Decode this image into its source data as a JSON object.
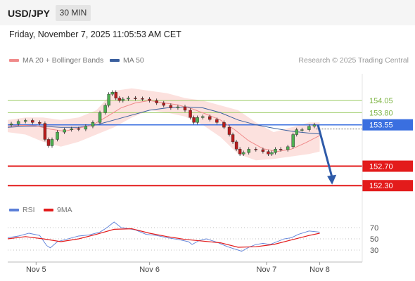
{
  "header": {
    "symbol": "USD/JPY",
    "timeframe": "30 MIN"
  },
  "datetime": "Friday, November 7, 2025 11:05:53 AM CET",
  "legend": {
    "ma20": {
      "label": "MA 20 + Bollinger Bands",
      "color": "#f08a8a"
    },
    "ma50": {
      "label": "MA 50",
      "color": "#3a5f9e"
    }
  },
  "credit": "Research © 2025 Trading Central",
  "rsi_legend": {
    "rsi": {
      "label": "RSI",
      "color": "#5b7fd8"
    },
    "ma9": {
      "label": "9MA",
      "color": "#e31b1b"
    }
  },
  "chart_data": [
    {
      "type": "line",
      "ylim": [
        152.0,
        154.6
      ],
      "xlim": [
        0,
        1
      ],
      "x_ticks": [
        {
          "label": "Nov 5",
          "x": 0.08
        },
        {
          "label": "Nov 6",
          "x": 0.4
        },
        {
          "label": "Nov 7",
          "x": 0.73
        },
        {
          "label": "Nov 8",
          "x": 0.88
        }
      ],
      "price": [
        [
          0.0,
          153.55
        ],
        [
          0.02,
          153.57
        ],
        [
          0.04,
          153.62
        ],
        [
          0.06,
          153.64
        ],
        [
          0.08,
          153.6
        ],
        [
          0.1,
          153.58
        ],
        [
          0.11,
          153.25
        ],
        [
          0.12,
          153.12
        ],
        [
          0.13,
          153.25
        ],
        [
          0.15,
          153.4
        ],
        [
          0.17,
          153.45
        ],
        [
          0.19,
          153.47
        ],
        [
          0.21,
          153.46
        ],
        [
          0.23,
          153.52
        ],
        [
          0.25,
          153.6
        ],
        [
          0.27,
          153.8
        ],
        [
          0.28,
          153.95
        ],
        [
          0.29,
          154.18
        ],
        [
          0.3,
          154.22
        ],
        [
          0.31,
          154.1
        ],
        [
          0.32,
          154.05
        ],
        [
          0.33,
          154.08
        ],
        [
          0.35,
          154.1
        ],
        [
          0.37,
          154.09
        ],
        [
          0.39,
          154.08
        ],
        [
          0.41,
          154.05
        ],
        [
          0.43,
          154.0
        ],
        [
          0.45,
          153.95
        ],
        [
          0.47,
          153.9
        ],
        [
          0.49,
          153.92
        ],
        [
          0.51,
          153.85
        ],
        [
          0.52,
          153.7
        ],
        [
          0.53,
          153.6
        ],
        [
          0.54,
          153.7
        ],
        [
          0.56,
          153.72
        ],
        [
          0.58,
          153.66
        ],
        [
          0.6,
          153.6
        ],
        [
          0.62,
          153.5
        ],
        [
          0.63,
          153.35
        ],
        [
          0.64,
          153.2
        ],
        [
          0.65,
          153.05
        ],
        [
          0.66,
          152.95
        ],
        [
          0.67,
          152.98
        ],
        [
          0.69,
          153.05
        ],
        [
          0.71,
          153.04
        ],
        [
          0.73,
          153.0
        ],
        [
          0.74,
          152.95
        ],
        [
          0.75,
          152.98
        ],
        [
          0.76,
          153.05
        ],
        [
          0.78,
          153.04
        ],
        [
          0.8,
          153.1
        ],
        [
          0.81,
          153.35
        ],
        [
          0.82,
          153.45
        ],
        [
          0.84,
          153.45
        ],
        [
          0.86,
          153.52
        ],
        [
          0.87,
          153.55
        ]
      ],
      "ma20": [
        [
          0.0,
          153.52
        ],
        [
          0.04,
          153.54
        ],
        [
          0.08,
          153.53
        ],
        [
          0.12,
          153.46
        ],
        [
          0.16,
          153.42
        ],
        [
          0.2,
          153.48
        ],
        [
          0.24,
          153.55
        ],
        [
          0.28,
          153.72
        ],
        [
          0.32,
          153.9
        ],
        [
          0.36,
          154.0
        ],
        [
          0.4,
          154.05
        ],
        [
          0.44,
          154.0
        ],
        [
          0.48,
          153.96
        ],
        [
          0.52,
          153.88
        ],
        [
          0.56,
          153.77
        ],
        [
          0.6,
          153.65
        ],
        [
          0.64,
          153.45
        ],
        [
          0.68,
          153.22
        ],
        [
          0.72,
          153.06
        ],
        [
          0.76,
          153.0
        ],
        [
          0.8,
          153.05
        ],
        [
          0.84,
          153.18
        ],
        [
          0.88,
          153.33
        ]
      ],
      "ma50": [
        [
          0.0,
          153.5
        ],
        [
          0.05,
          153.52
        ],
        [
          0.1,
          153.52
        ],
        [
          0.15,
          153.5
        ],
        [
          0.2,
          153.5
        ],
        [
          0.25,
          153.55
        ],
        [
          0.3,
          153.65
        ],
        [
          0.35,
          153.75
        ],
        [
          0.4,
          153.85
        ],
        [
          0.45,
          153.9
        ],
        [
          0.5,
          153.92
        ],
        [
          0.55,
          153.9
        ],
        [
          0.6,
          153.8
        ],
        [
          0.65,
          153.65
        ],
        [
          0.7,
          153.55
        ],
        [
          0.75,
          153.48
        ],
        [
          0.8,
          153.42
        ],
        [
          0.85,
          153.38
        ],
        [
          0.88,
          153.36
        ]
      ],
      "bollinger_upper": [
        [
          0.0,
          153.65
        ],
        [
          0.05,
          153.7
        ],
        [
          0.1,
          153.7
        ],
        [
          0.15,
          153.65
        ],
        [
          0.2,
          153.7
        ],
        [
          0.25,
          153.85
        ],
        [
          0.3,
          154.25
        ],
        [
          0.35,
          154.3
        ],
        [
          0.4,
          154.25
        ],
        [
          0.45,
          154.2
        ],
        [
          0.5,
          154.1
        ],
        [
          0.55,
          154.05
        ],
        [
          0.6,
          153.95
        ],
        [
          0.65,
          153.85
        ],
        [
          0.7,
          153.6
        ],
        [
          0.75,
          153.4
        ],
        [
          0.8,
          153.5
        ],
        [
          0.85,
          153.6
        ],
        [
          0.88,
          153.6
        ]
      ],
      "bollinger_lower": [
        [
          0.0,
          153.4
        ],
        [
          0.05,
          153.35
        ],
        [
          0.1,
          153.2
        ],
        [
          0.15,
          153.1
        ],
        [
          0.2,
          153.2
        ],
        [
          0.25,
          153.35
        ],
        [
          0.3,
          153.5
        ],
        [
          0.35,
          153.7
        ],
        [
          0.4,
          153.85
        ],
        [
          0.45,
          153.8
        ],
        [
          0.5,
          153.72
        ],
        [
          0.55,
          153.55
        ],
        [
          0.6,
          153.3
        ],
        [
          0.65,
          152.95
        ],
        [
          0.7,
          152.82
        ],
        [
          0.75,
          152.85
        ],
        [
          0.8,
          152.9
        ],
        [
          0.85,
          152.95
        ],
        [
          0.88,
          153.0
        ]
      ],
      "levels": [
        {
          "label": "154.05",
          "value": 154.05,
          "type": "resistance",
          "color": "#9ccc65"
        },
        {
          "label": "153.80",
          "value": 153.8,
          "type": "resistance",
          "color": "#9ccc65"
        },
        {
          "label": "153.55",
          "value": 153.55,
          "type": "pivot",
          "color": "#3a6fe0"
        },
        {
          "label": "152.70",
          "value": 152.7,
          "type": "support",
          "color": "#e31b1b"
        },
        {
          "label": "152.30",
          "value": 152.3,
          "type": "support",
          "color": "#e31b1b"
        }
      ],
      "forecast_arrow": {
        "from": [
          0.875,
          153.55
        ],
        "to": [
          0.915,
          152.35
        ],
        "color": "#2e5aa8"
      }
    },
    {
      "type": "line",
      "title": "RSI",
      "ylim": [
        15,
        85
      ],
      "y_ticks": [
        70,
        50,
        30
      ],
      "series": [
        {
          "name": "RSI",
          "color": "#5b7fd8",
          "values": [
            [
              0.0,
              52
            ],
            [
              0.03,
              55
            ],
            [
              0.06,
              60
            ],
            [
              0.09,
              56
            ],
            [
              0.11,
              38
            ],
            [
              0.12,
              34
            ],
            [
              0.14,
              45
            ],
            [
              0.17,
              50
            ],
            [
              0.2,
              55
            ],
            [
              0.23,
              57
            ],
            [
              0.26,
              62
            ],
            [
              0.28,
              70
            ],
            [
              0.3,
              80
            ],
            [
              0.32,
              70
            ],
            [
              0.34,
              68
            ],
            [
              0.36,
              66
            ],
            [
              0.39,
              58
            ],
            [
              0.42,
              56
            ],
            [
              0.45,
              52
            ],
            [
              0.48,
              49
            ],
            [
              0.51,
              45
            ],
            [
              0.52,
              40
            ],
            [
              0.54,
              47
            ],
            [
              0.56,
              50
            ],
            [
              0.59,
              44
            ],
            [
              0.62,
              36
            ],
            [
              0.64,
              32
            ],
            [
              0.66,
              28
            ],
            [
              0.68,
              35
            ],
            [
              0.7,
              40
            ],
            [
              0.72,
              42
            ],
            [
              0.74,
              40
            ],
            [
              0.76,
              45
            ],
            [
              0.78,
              50
            ],
            [
              0.8,
              52
            ],
            [
              0.82,
              58
            ],
            [
              0.85,
              64
            ],
            [
              0.88,
              62
            ]
          ]
        },
        {
          "name": "9MA",
          "color": "#e31b1b",
          "values": [
            [
              0.0,
              50
            ],
            [
              0.05,
              54
            ],
            [
              0.1,
              50
            ],
            [
              0.15,
              45
            ],
            [
              0.2,
              50
            ],
            [
              0.25,
              58
            ],
            [
              0.3,
              67
            ],
            [
              0.35,
              68
            ],
            [
              0.4,
              60
            ],
            [
              0.45,
              54
            ],
            [
              0.5,
              49
            ],
            [
              0.55,
              46
            ],
            [
              0.6,
              43
            ],
            [
              0.65,
              35
            ],
            [
              0.7,
              36
            ],
            [
              0.75,
              40
            ],
            [
              0.8,
              48
            ],
            [
              0.85,
              56
            ],
            [
              0.88,
              60
            ]
          ]
        }
      ]
    }
  ]
}
